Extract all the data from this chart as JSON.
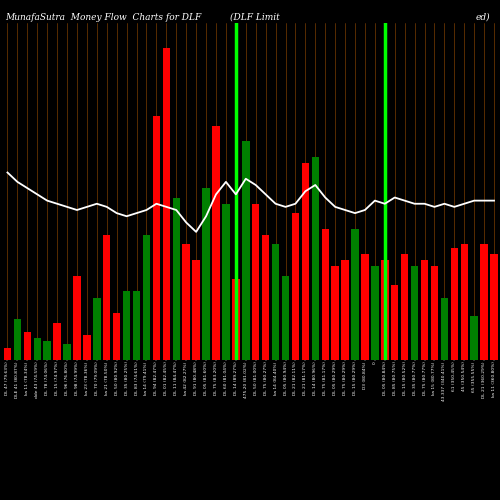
{
  "title": "MunafaSutra  Money Flow  Charts for DLF",
  "subtitle_mid": "(DLF Limit",
  "subtitle_right": "ed)",
  "bg_color": "#000000",
  "bar_colors": [
    "red",
    "green",
    "red",
    "green",
    "green",
    "red",
    "green",
    "red",
    "red",
    "green",
    "red",
    "red",
    "green",
    "green",
    "green",
    "red",
    "red",
    "green",
    "red",
    "red",
    "green",
    "red",
    "green",
    "red",
    "green",
    "red",
    "red",
    "green",
    "green",
    "red",
    "red",
    "green",
    "red",
    "red",
    "red",
    "green",
    "red",
    "green",
    "red",
    "red",
    "red",
    "green",
    "red",
    "red",
    "green",
    "red",
    "red",
    "green",
    "red",
    "red"
  ],
  "bar_heights": [
    0.04,
    0.13,
    0.09,
    0.07,
    0.06,
    0.12,
    0.05,
    0.27,
    0.08,
    0.2,
    0.4,
    0.15,
    0.22,
    0.22,
    0.4,
    0.78,
    1.0,
    0.52,
    0.37,
    0.32,
    0.55,
    0.75,
    0.5,
    0.26,
    0.7,
    0.5,
    0.4,
    0.37,
    0.27,
    0.47,
    0.63,
    0.65,
    0.42,
    0.3,
    0.32,
    0.42,
    0.34,
    0.3,
    0.32,
    0.24,
    0.34,
    0.3,
    0.32,
    0.3,
    0.2,
    0.36,
    0.37,
    0.14,
    0.37,
    0.34
  ],
  "green_vlines_pos": [
    23,
    38
  ],
  "green_vline_color": "#00ff00",
  "orange_grid_color": "#b35900",
  "white_line_y": [
    0.6,
    0.57,
    0.55,
    0.53,
    0.51,
    0.5,
    0.49,
    0.48,
    0.49,
    0.5,
    0.49,
    0.47,
    0.46,
    0.47,
    0.48,
    0.5,
    0.49,
    0.48,
    0.44,
    0.41,
    0.46,
    0.53,
    0.57,
    0.53,
    0.58,
    0.56,
    0.53,
    0.5,
    0.49,
    0.5,
    0.54,
    0.56,
    0.52,
    0.49,
    0.48,
    0.47,
    0.48,
    0.51,
    0.5,
    0.52,
    0.51,
    0.5,
    0.5,
    0.49,
    0.5,
    0.49,
    0.5,
    0.51,
    0.51,
    0.51
  ],
  "x_labels": [
    "DL 47 (79.63%)",
    "DLE 41 (80.87%)",
    "ka 11 (78.34%)",
    "dde 43 (74.59%)",
    "DL 78 (74.06%)",
    "DL 15 (74.97%)",
    "DL 96 (76.80%)",
    "DL 98 (74.99%)",
    "ka 23 (78.36%)",
    "DL 70 (79.09%)",
    "ka 21 (78.50%)",
    "DL 50 (80.92%)",
    "DL 35 (80.25%)",
    "DL 83 (74.61%)",
    "ka 14 (79.41%)",
    "DL 94 (82.47%)",
    "DL 01 (82.45%)",
    "DL 11 (84.47%)",
    "ka 42 (82.27%)",
    "DL 91 (80.48%)",
    "DL 05 (81.60%)",
    "DL 75 (83.20%)",
    "DL 60 (81.04%)",
    "DL 14 (89.27%)",
    "475.20 (81.02%)",
    "DL 50 (81.00%)",
    "DL 75 (80.27%)",
    "ka 14 (84.40%)",
    "DL 05 (80.94%)",
    "DL 21 (82.11%)",
    "DL 21 (81.17%)",
    "DL 14 (80.96%)",
    "DL 75 (81.17%)",
    "DL 05 (80.29%)",
    "DL 75 (80.29%)",
    "DL 15 (80.29%)",
    "D3 (80.84%)",
    "0",
    "DL 05 (80.84%)",
    "DL 85 (80.75%)",
    "DL 15 (80.52%)",
    "DL 35 (80.77%)",
    "DL 75 (80.77%)",
    "ka 15 (80.77%)",
    "43.337 (340.41%)",
    "61 (350.45%)",
    "45 (350.54%)",
    "65 (355.55%)",
    "DL 21 (360.29%)",
    "ka 11 (360.80%)"
  ],
  "figsize": [
    5.0,
    5.0
  ],
  "dpi": 100,
  "title_fontsize": 6.5,
  "xlabel_fontsize": 3.2,
  "bar_width": 0.75,
  "ylim": [
    0,
    1.08
  ]
}
